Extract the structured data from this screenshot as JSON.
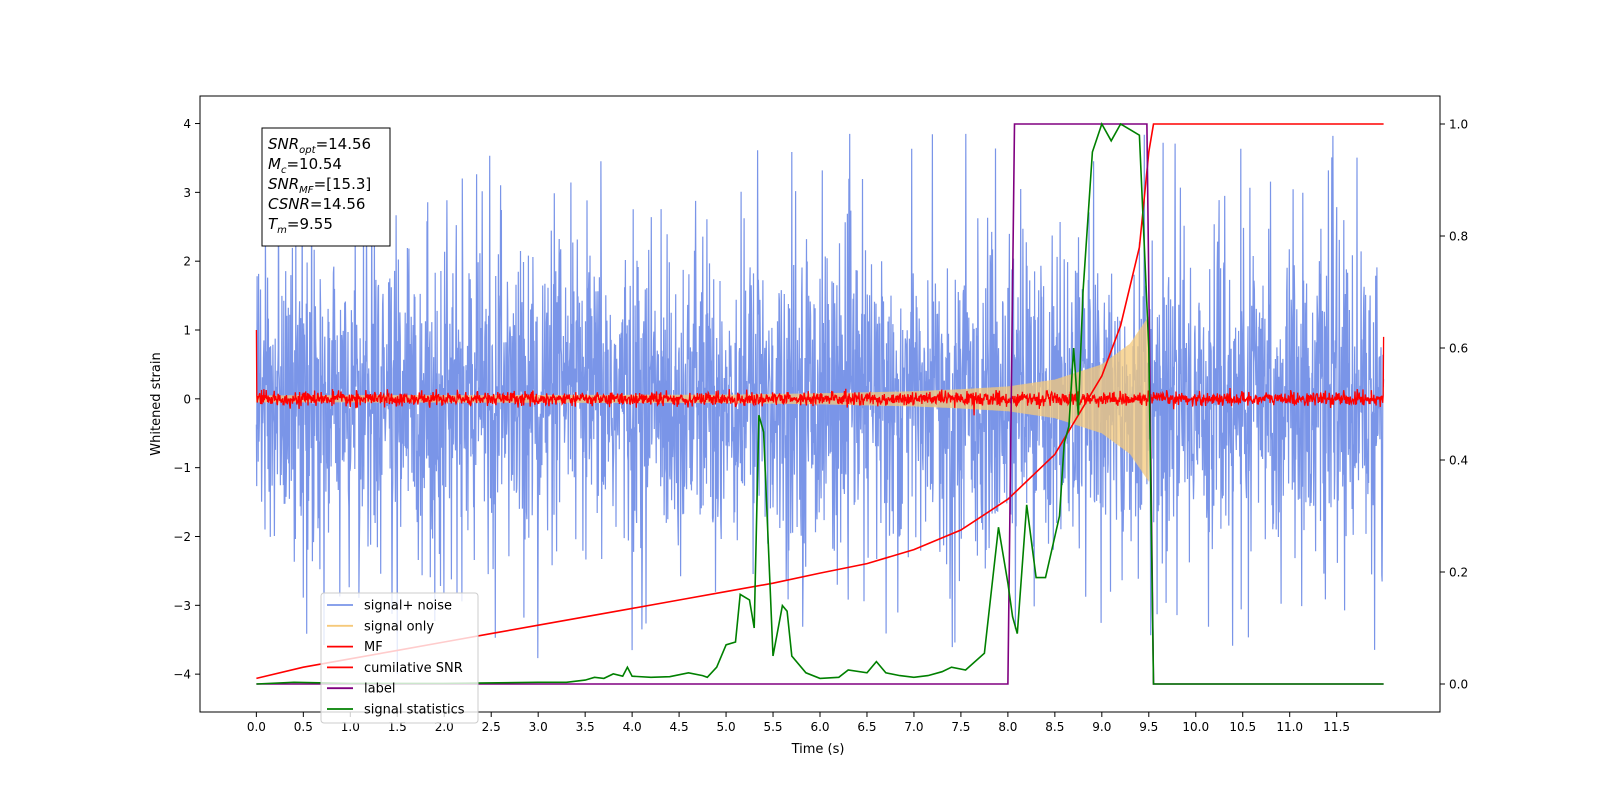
{
  "chart_data": {
    "type": "line",
    "xlabel": "Time (s)",
    "ylabel": "Whitened strain",
    "xlim": [
      -0.6,
      12.6
    ],
    "ylim": [
      -4.55,
      4.4
    ],
    "y2lim": [
      -0.05,
      1.05
    ],
    "x_ticks": [
      "0.0",
      "0.5",
      "1.0",
      "1.5",
      "2.0",
      "2.5",
      "3.0",
      "3.5",
      "4.0",
      "4.5",
      "5.0",
      "5.5",
      "6.0",
      "6.5",
      "7.0",
      "7.5",
      "8.0",
      "8.5",
      "9.0",
      "9.5",
      "10.0",
      "10.5",
      "11.0",
      "11.5"
    ],
    "y_ticks": [
      "−4",
      "−3",
      "−2",
      "−1",
      "0",
      "1",
      "2",
      "3",
      "4"
    ],
    "y2_ticks": [
      "0.0",
      "0.2",
      "0.4",
      "0.6",
      "0.8",
      "1.0"
    ],
    "legend_position": "lower-left",
    "annotation": [
      {
        "base": "SNR",
        "sub": "opt",
        "value": "=14.56"
      },
      {
        "base": "M",
        "sub": "c",
        "value": "=10.54"
      },
      {
        "base": "SNR",
        "sub": "MF",
        "value": "=[15.3]"
      },
      {
        "base": "CSNR",
        "sub": "",
        "value": "=14.56"
      },
      {
        "base": "T",
        "sub": "m",
        "value": "=9.55"
      }
    ],
    "series": [
      {
        "name": "signal+ noise",
        "color": "#7a95e8",
        "axis": "left",
        "kind": "noise",
        "x_range": [
          0,
          12
        ],
        "amplitude_std": 1.1,
        "peak_max": 3.85,
        "peak_min": -4.0
      },
      {
        "name": "signal only",
        "color": "#f5c97a",
        "axis": "left",
        "kind": "chirp_envelope",
        "x_range": [
          0,
          9.5
        ],
        "envelope_points": [
          [
            0,
            0.05
          ],
          [
            5,
            0.06
          ],
          [
            6,
            0.08
          ],
          [
            7,
            0.11
          ],
          [
            7.5,
            0.14
          ],
          [
            8,
            0.18
          ],
          [
            8.5,
            0.28
          ],
          [
            9,
            0.5
          ],
          [
            9.3,
            0.8
          ],
          [
            9.5,
            1.2
          ]
        ]
      },
      {
        "name": "MF",
        "color": "#ff0000",
        "axis": "left",
        "kind": "noise_small",
        "x_range": [
          0,
          12
        ],
        "amplitude_std": 0.05,
        "start_value": 1.0,
        "end_value": 0.9
      },
      {
        "name": "cumilative SNR",
        "color": "#ff0000",
        "axis": "right",
        "points": [
          [
            0,
            0.01
          ],
          [
            0.5,
            0.03
          ],
          [
            1.0,
            0.045
          ],
          [
            1.5,
            0.06
          ],
          [
            2.0,
            0.075
          ],
          [
            2.5,
            0.09
          ],
          [
            3.0,
            0.105
          ],
          [
            3.5,
            0.12
          ],
          [
            4.0,
            0.135
          ],
          [
            4.5,
            0.15
          ],
          [
            5.0,
            0.165
          ],
          [
            5.5,
            0.18
          ],
          [
            6.0,
            0.198
          ],
          [
            6.5,
            0.215
          ],
          [
            7.0,
            0.24
          ],
          [
            7.5,
            0.275
          ],
          [
            8.0,
            0.33
          ],
          [
            8.5,
            0.41
          ],
          [
            9.0,
            0.55
          ],
          [
            9.2,
            0.64
          ],
          [
            9.4,
            0.78
          ],
          [
            9.5,
            0.95
          ],
          [
            9.55,
            1.0
          ],
          [
            12.0,
            1.0
          ]
        ]
      },
      {
        "name": "label",
        "color": "#800080",
        "axis": "right",
        "points": [
          [
            0,
            0
          ],
          [
            8.0,
            0
          ],
          [
            8.07,
            1
          ],
          [
            9.48,
            1
          ],
          [
            9.55,
            0
          ],
          [
            12.0,
            0
          ]
        ]
      },
      {
        "name": "signal statistics",
        "color": "#008000",
        "axis": "right",
        "points": [
          [
            0,
            0.0
          ],
          [
            0.4,
            0.003
          ],
          [
            1.0,
            0.001
          ],
          [
            2.0,
            0.001
          ],
          [
            3.0,
            0.003
          ],
          [
            3.3,
            0.003
          ],
          [
            3.5,
            0.007
          ],
          [
            3.6,
            0.012
          ],
          [
            3.7,
            0.01
          ],
          [
            3.8,
            0.018
          ],
          [
            3.9,
            0.014
          ],
          [
            3.95,
            0.03
          ],
          [
            4.0,
            0.014
          ],
          [
            4.2,
            0.012
          ],
          [
            4.4,
            0.013
          ],
          [
            4.6,
            0.02
          ],
          [
            4.75,
            0.015
          ],
          [
            4.8,
            0.012
          ],
          [
            4.9,
            0.03
          ],
          [
            5.0,
            0.07
          ],
          [
            5.1,
            0.075
          ],
          [
            5.15,
            0.16
          ],
          [
            5.25,
            0.15
          ],
          [
            5.3,
            0.1
          ],
          [
            5.35,
            0.48
          ],
          [
            5.4,
            0.45
          ],
          [
            5.5,
            0.05
          ],
          [
            5.6,
            0.14
          ],
          [
            5.65,
            0.13
          ],
          [
            5.7,
            0.05
          ],
          [
            5.85,
            0.02
          ],
          [
            6.0,
            0.01
          ],
          [
            6.2,
            0.012
          ],
          [
            6.3,
            0.025
          ],
          [
            6.5,
            0.02
          ],
          [
            6.6,
            0.04
          ],
          [
            6.7,
            0.02
          ],
          [
            6.85,
            0.015
          ],
          [
            7.0,
            0.012
          ],
          [
            7.15,
            0.015
          ],
          [
            7.3,
            0.022
          ],
          [
            7.4,
            0.03
          ],
          [
            7.55,
            0.025
          ],
          [
            7.75,
            0.055
          ],
          [
            7.9,
            0.28
          ],
          [
            8.0,
            0.18
          ],
          [
            8.05,
            0.12
          ],
          [
            8.1,
            0.09
          ],
          [
            8.2,
            0.32
          ],
          [
            8.3,
            0.19
          ],
          [
            8.4,
            0.19
          ],
          [
            8.55,
            0.3
          ],
          [
            8.6,
            0.43
          ],
          [
            8.65,
            0.46
          ],
          [
            8.7,
            0.6
          ],
          [
            8.75,
            0.48
          ],
          [
            8.8,
            0.7
          ],
          [
            8.9,
            0.95
          ],
          [
            9.0,
            1.0
          ],
          [
            9.1,
            0.97
          ],
          [
            9.2,
            1.0
          ],
          [
            9.3,
            0.99
          ],
          [
            9.4,
            0.98
          ],
          [
            9.5,
            0.6
          ],
          [
            9.55,
            0.0
          ],
          [
            12.0,
            0.0
          ]
        ]
      }
    ]
  }
}
